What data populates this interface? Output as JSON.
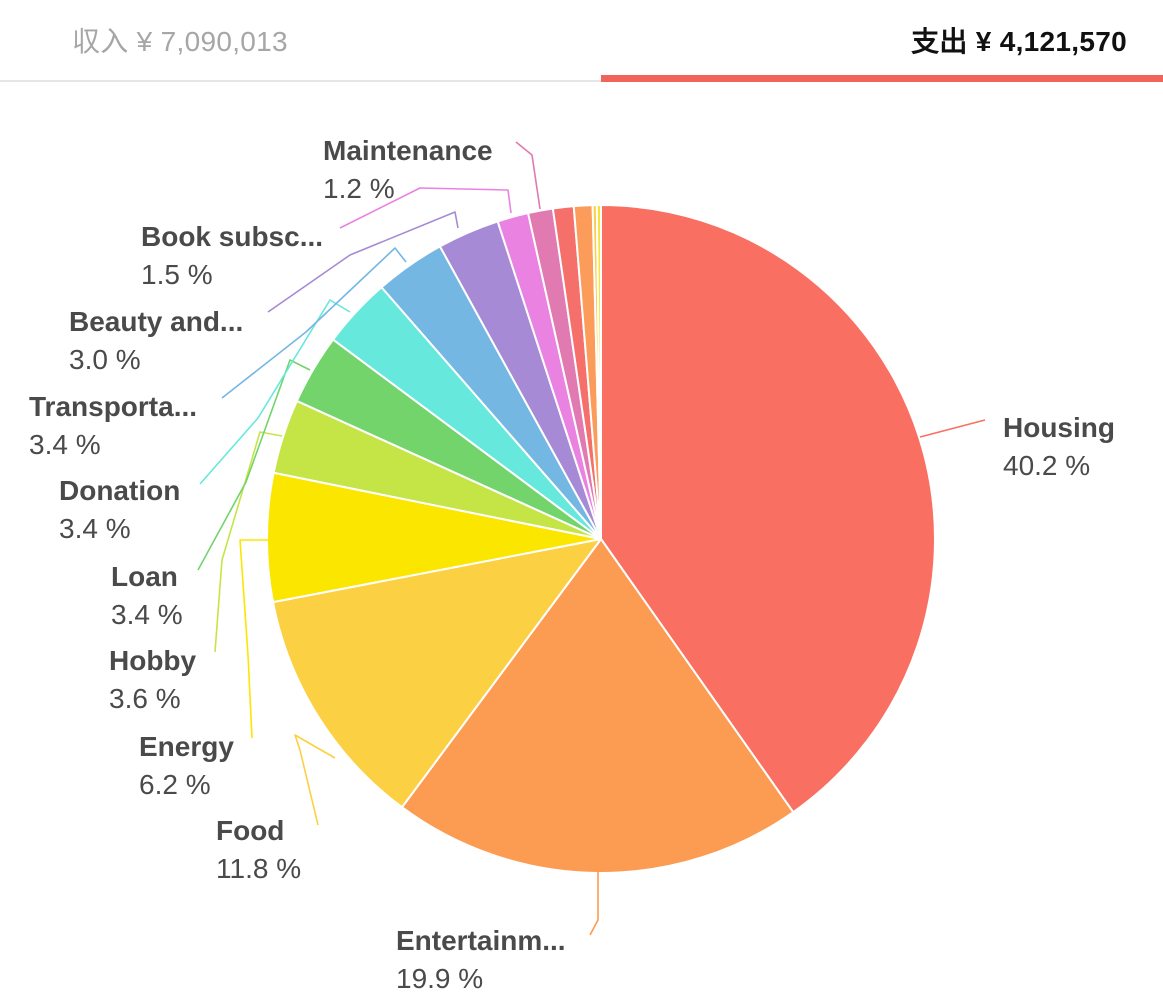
{
  "tabs": {
    "income_label": "収入 ¥ 7,090,013",
    "expense_label": "支出 ¥ 4,121,570",
    "active": "expense",
    "indicator_color": "#f0645a"
  },
  "chart_data": {
    "type": "pie",
    "slices": [
      {
        "name": "Housing",
        "label": "Housing",
        "percent_label": "40.2 %",
        "value": 40.2,
        "color": "#f96f62"
      },
      {
        "name": "Entertainment",
        "label": "Entertainm...",
        "percent_label": "19.9 %",
        "value": 19.9,
        "color": "#fc9b52"
      },
      {
        "name": "Food",
        "label": "Food",
        "percent_label": "11.8 %",
        "value": 11.8,
        "color": "#fcd043"
      },
      {
        "name": "Energy",
        "label": "Energy",
        "percent_label": "6.2 %",
        "value": 6.2,
        "color": "#fbe600"
      },
      {
        "name": "Hobby",
        "label": "Hobby",
        "percent_label": "3.6 %",
        "value": 3.6,
        "color": "#c5e547"
      },
      {
        "name": "Loan",
        "label": "Loan",
        "percent_label": "3.4 %",
        "value": 3.4,
        "color": "#73d46c"
      },
      {
        "name": "Donation",
        "label": "Donation",
        "percent_label": "3.4 %",
        "value": 3.4,
        "color": "#66e8dc"
      },
      {
        "name": "Transportation",
        "label": "Transporta...",
        "percent_label": "3.4 %",
        "value": 3.4,
        "color": "#74b7e2"
      },
      {
        "name": "Beauty and...",
        "label": "Beauty and...",
        "percent_label": "3.0 %",
        "value": 3.0,
        "color": "#a68ad5"
      },
      {
        "name": "Book subscription",
        "label": "Book subsc...",
        "percent_label": "1.5 %",
        "value": 1.5,
        "color": "#ea82e1"
      },
      {
        "name": "Maintenance",
        "label": "Maintenance",
        "percent_label": "1.2 %",
        "value": 1.2,
        "color": "#e07ab0"
      },
      {
        "name": "unlabeled-1",
        "value": 1.0,
        "color": "#f56f6b"
      },
      {
        "name": "unlabeled-2",
        "value": 0.9,
        "color": "#fb9c5a"
      },
      {
        "name": "unlabeled-3",
        "value": 0.2,
        "color": "#fccd47"
      },
      {
        "name": "unlabeled-4",
        "value": 0.2,
        "color": "#f8e23a"
      }
    ],
    "start_angle": "12 o'clock",
    "direction": "clockwise",
    "legend": "none",
    "slice_separator_color": "#ffffff"
  }
}
